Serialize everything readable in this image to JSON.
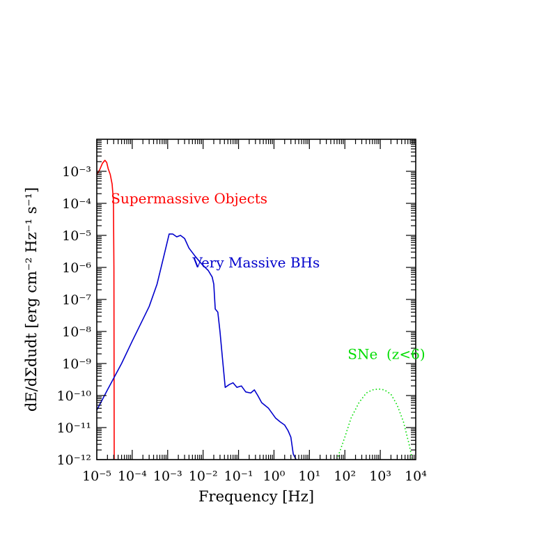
{
  "chart_data": {
    "type": "line",
    "title": "",
    "xlabel": "Frequency [Hz]",
    "ylabel": "dE/dΣdudt [erg cm⁻² Hz⁻¹ s⁻¹]",
    "xscale": "log",
    "yscale": "log",
    "xlim": [
      1e-05,
      10000.0
    ],
    "ylim": [
      1e-12,
      0.01
    ],
    "x_ticks": [
      {
        "value": 1e-05,
        "label": "10⁻⁵"
      },
      {
        "value": 0.0001,
        "label": "10⁻⁴"
      },
      {
        "value": 0.001,
        "label": "10⁻³"
      },
      {
        "value": 0.01,
        "label": "10⁻²"
      },
      {
        "value": 0.1,
        "label": "10⁻¹"
      },
      {
        "value": 1,
        "label": "10⁰"
      },
      {
        "value": 10,
        "label": "10¹"
      },
      {
        "value": 100,
        "label": "10²"
      },
      {
        "value": 1000,
        "label": "10³"
      },
      {
        "value": 10000,
        "label": "10⁴"
      }
    ],
    "y_ticks": [
      {
        "value": 0.001,
        "label": "10⁻³"
      },
      {
        "value": 0.0001,
        "label": "10⁻⁴"
      },
      {
        "value": 1e-05,
        "label": "10⁻⁵"
      },
      {
        "value": 1e-06,
        "label": "10⁻⁶"
      },
      {
        "value": 1e-07,
        "label": "10⁻⁷"
      },
      {
        "value": 1e-08,
        "label": "10⁻⁸"
      },
      {
        "value": 1e-09,
        "label": "10⁻⁹"
      },
      {
        "value": 1e-10,
        "label": "10⁻¹⁰"
      },
      {
        "value": 1e-11,
        "label": "10⁻¹¹"
      },
      {
        "value": 1e-12,
        "label": "10⁻¹²"
      }
    ],
    "grid": false,
    "series": [
      {
        "name": "Supermassive Objects",
        "color": "#ff0000",
        "style": "solid",
        "label_at": [
          2.5e-05,
          0.0001
        ],
        "points": [
          [
            1e-05,
            0.0008
          ],
          [
            1.2e-05,
            0.0011
          ],
          [
            1.45e-05,
            0.0018
          ],
          [
            1.7e-05,
            0.0022
          ],
          [
            1.9e-05,
            0.0019
          ],
          [
            2.1e-05,
            0.0012
          ],
          [
            2.4e-05,
            0.0008
          ],
          [
            2.7e-05,
            0.0004
          ],
          [
            2.95e-05,
            0.00012
          ],
          [
            3.05e-05,
            1e-06
          ],
          [
            3.1e-05,
            1e-12
          ]
        ]
      },
      {
        "name": "Very Massive BHs",
        "color": "#0000cc",
        "style": "solid",
        "label_at": [
          0.005,
          1e-06
        ],
        "points": [
          [
            1e-05,
            3.5e-11
          ],
          [
            2e-05,
            1.5e-10
          ],
          [
            5e-05,
            1e-09
          ],
          [
            0.0001,
            5e-09
          ],
          [
            0.0003,
            6e-08
          ],
          [
            0.0005,
            3e-07
          ],
          [
            0.0008,
            2.5e-06
          ],
          [
            0.0011,
            1.1e-05
          ],
          [
            0.0014,
            1.1e-05
          ],
          [
            0.0018,
            9e-06
          ],
          [
            0.0023,
            1e-05
          ],
          [
            0.003,
            8e-06
          ],
          [
            0.004,
            4e-06
          ],
          [
            0.006,
            2.2e-06
          ],
          [
            0.009,
            1.3e-06
          ],
          [
            0.014,
            8e-07
          ],
          [
            0.018,
            5e-07
          ],
          [
            0.02,
            3e-07
          ],
          [
            0.022,
            5e-08
          ],
          [
            0.026,
            4e-08
          ],
          [
            0.03,
            1e-08
          ],
          [
            0.035,
            1.5e-09
          ],
          [
            0.042,
            1.8e-10
          ],
          [
            0.055,
            2.2e-10
          ],
          [
            0.07,
            2.5e-10
          ],
          [
            0.09,
            1.8e-10
          ],
          [
            0.12,
            2e-10
          ],
          [
            0.16,
            1.3e-10
          ],
          [
            0.22,
            1.2e-10
          ],
          [
            0.28,
            1.5e-10
          ],
          [
            0.35,
            1e-10
          ],
          [
            0.45,
            6e-11
          ],
          [
            0.7,
            4e-11
          ],
          [
            1.1,
            2e-11
          ],
          [
            1.5,
            1.5e-11
          ],
          [
            2,
            1.2e-11
          ],
          [
            2.5,
            8e-12
          ],
          [
            3,
            5e-12
          ],
          [
            3.5,
            1.5e-12
          ],
          [
            4.2,
            1e-12
          ]
        ]
      },
      {
        "name": "SNe  (z<6)",
        "color": "#00dd00",
        "style": "dotted",
        "label_at": [
          120.0,
          1.4e-09
        ],
        "points": [
          [
            60,
            1e-12
          ],
          [
            100,
            5e-12
          ],
          [
            150,
            2e-11
          ],
          [
            250,
            6e-11
          ],
          [
            400,
            1.2e-10
          ],
          [
            600,
            1.5e-10
          ],
          [
            900,
            1.6e-10
          ],
          [
            1300,
            1.5e-10
          ],
          [
            2000,
            1.1e-10
          ],
          [
            3000,
            5e-11
          ],
          [
            4500,
            1.5e-11
          ],
          [
            6500,
            3e-12
          ],
          [
            8000,
            1e-12
          ]
        ]
      }
    ]
  }
}
